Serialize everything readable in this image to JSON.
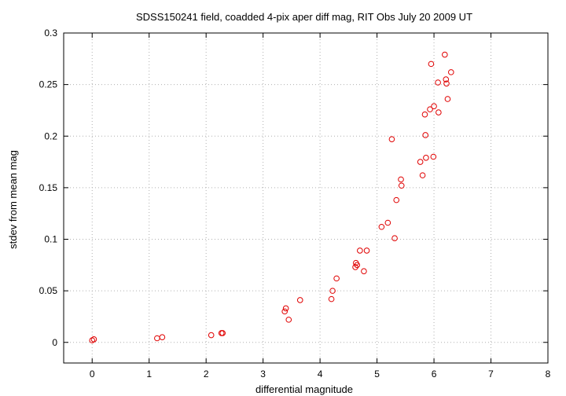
{
  "chart_data": {
    "type": "scatter",
    "title": "SDSS150241 field,  coadded 4-pix aper diff mag, RIT Obs July 20 2009 UT",
    "xlabel": "differential magnitude",
    "ylabel": "stdev from mean mag",
    "xlim": [
      -0.5,
      8
    ],
    "ylim": [
      -0.02,
      0.3
    ],
    "xticks": [
      0,
      1,
      2,
      3,
      4,
      5,
      6,
      7,
      8
    ],
    "yticks": [
      0,
      0.05,
      0.1,
      0.15,
      0.2,
      0.25,
      0.3
    ],
    "xtick_labels": [
      "0",
      "1",
      "2",
      "3",
      "4",
      "5",
      "6",
      "7",
      "8"
    ],
    "ytick_labels": [
      "0",
      "0.05",
      "0.1",
      "0.15",
      "0.2",
      "0.25",
      "0.3"
    ],
    "grid": true,
    "marker_color": "#e00000",
    "series": [
      {
        "points": [
          [
            0.0,
            0.002
          ],
          [
            0.03,
            0.003
          ],
          [
            1.14,
            0.004
          ],
          [
            1.23,
            0.005
          ],
          [
            2.09,
            0.007
          ],
          [
            2.27,
            0.009
          ],
          [
            2.29,
            0.009
          ],
          [
            3.38,
            0.03
          ],
          [
            3.4,
            0.033
          ],
          [
            3.45,
            0.022
          ],
          [
            3.65,
            0.041
          ],
          [
            4.2,
            0.042
          ],
          [
            4.22,
            0.05
          ],
          [
            4.29,
            0.062
          ],
          [
            4.62,
            0.073
          ],
          [
            4.63,
            0.077
          ],
          [
            4.65,
            0.075
          ],
          [
            4.7,
            0.089
          ],
          [
            4.77,
            0.069
          ],
          [
            4.82,
            0.089
          ],
          [
            5.08,
            0.112
          ],
          [
            5.19,
            0.116
          ],
          [
            5.26,
            0.197
          ],
          [
            5.31,
            0.101
          ],
          [
            5.34,
            0.138
          ],
          [
            5.42,
            0.158
          ],
          [
            5.43,
            0.152
          ],
          [
            5.76,
            0.175
          ],
          [
            5.8,
            0.162
          ],
          [
            5.84,
            0.221
          ],
          [
            5.85,
            0.201
          ],
          [
            5.86,
            0.179
          ],
          [
            5.93,
            0.226
          ],
          [
            5.95,
            0.27
          ],
          [
            5.99,
            0.18
          ],
          [
            6.0,
            0.229
          ],
          [
            6.07,
            0.252
          ],
          [
            6.08,
            0.223
          ],
          [
            6.19,
            0.279
          ],
          [
            6.21,
            0.255
          ],
          [
            6.22,
            0.251
          ],
          [
            6.24,
            0.236
          ],
          [
            6.3,
            0.262
          ]
        ]
      }
    ]
  }
}
